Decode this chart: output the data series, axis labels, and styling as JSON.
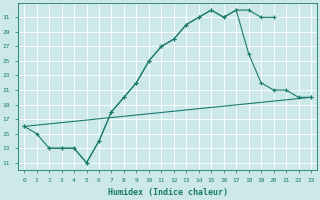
{
  "line1_x": [
    0,
    1,
    2,
    3,
    4,
    5,
    6,
    7,
    8,
    9,
    10,
    11,
    12,
    13,
    14,
    15,
    16,
    17,
    18,
    19,
    20
  ],
  "line1_y": [
    16,
    15,
    13,
    13,
    13,
    11,
    14,
    18,
    20,
    22,
    25,
    27,
    28,
    30,
    31,
    32,
    31,
    32,
    32,
    31,
    31
  ],
  "line2_x": [
    2,
    3,
    4,
    5,
    6,
    7,
    8,
    9,
    10,
    11,
    12,
    13,
    14,
    15,
    16,
    17,
    18,
    19,
    20,
    21,
    22,
    23
  ],
  "line2_y": [
    13,
    13,
    13,
    11,
    14,
    18,
    20,
    22,
    25,
    27,
    28,
    30,
    31,
    32,
    31,
    32,
    26,
    22,
    21,
    21,
    20,
    20
  ],
  "line3_x": [
    0,
    23
  ],
  "line3_y": [
    16,
    20
  ],
  "color": "#1a7a6e",
  "bg_color": "#cce8e8",
  "grid_color": "#b0d8d8",
  "xlabel": "Humidex (Indice chaleur)",
  "xlim": [
    -0.5,
    23.5
  ],
  "ylim": [
    10,
    33
  ],
  "yticks": [
    11,
    13,
    15,
    17,
    19,
    21,
    23,
    25,
    27,
    29,
    31
  ],
  "xticks": [
    0,
    1,
    2,
    3,
    4,
    5,
    6,
    7,
    8,
    9,
    10,
    11,
    12,
    13,
    14,
    15,
    16,
    17,
    18,
    19,
    20,
    21,
    22,
    23
  ],
  "marker": "+",
  "markersize": 3,
  "linewidth": 0.8
}
